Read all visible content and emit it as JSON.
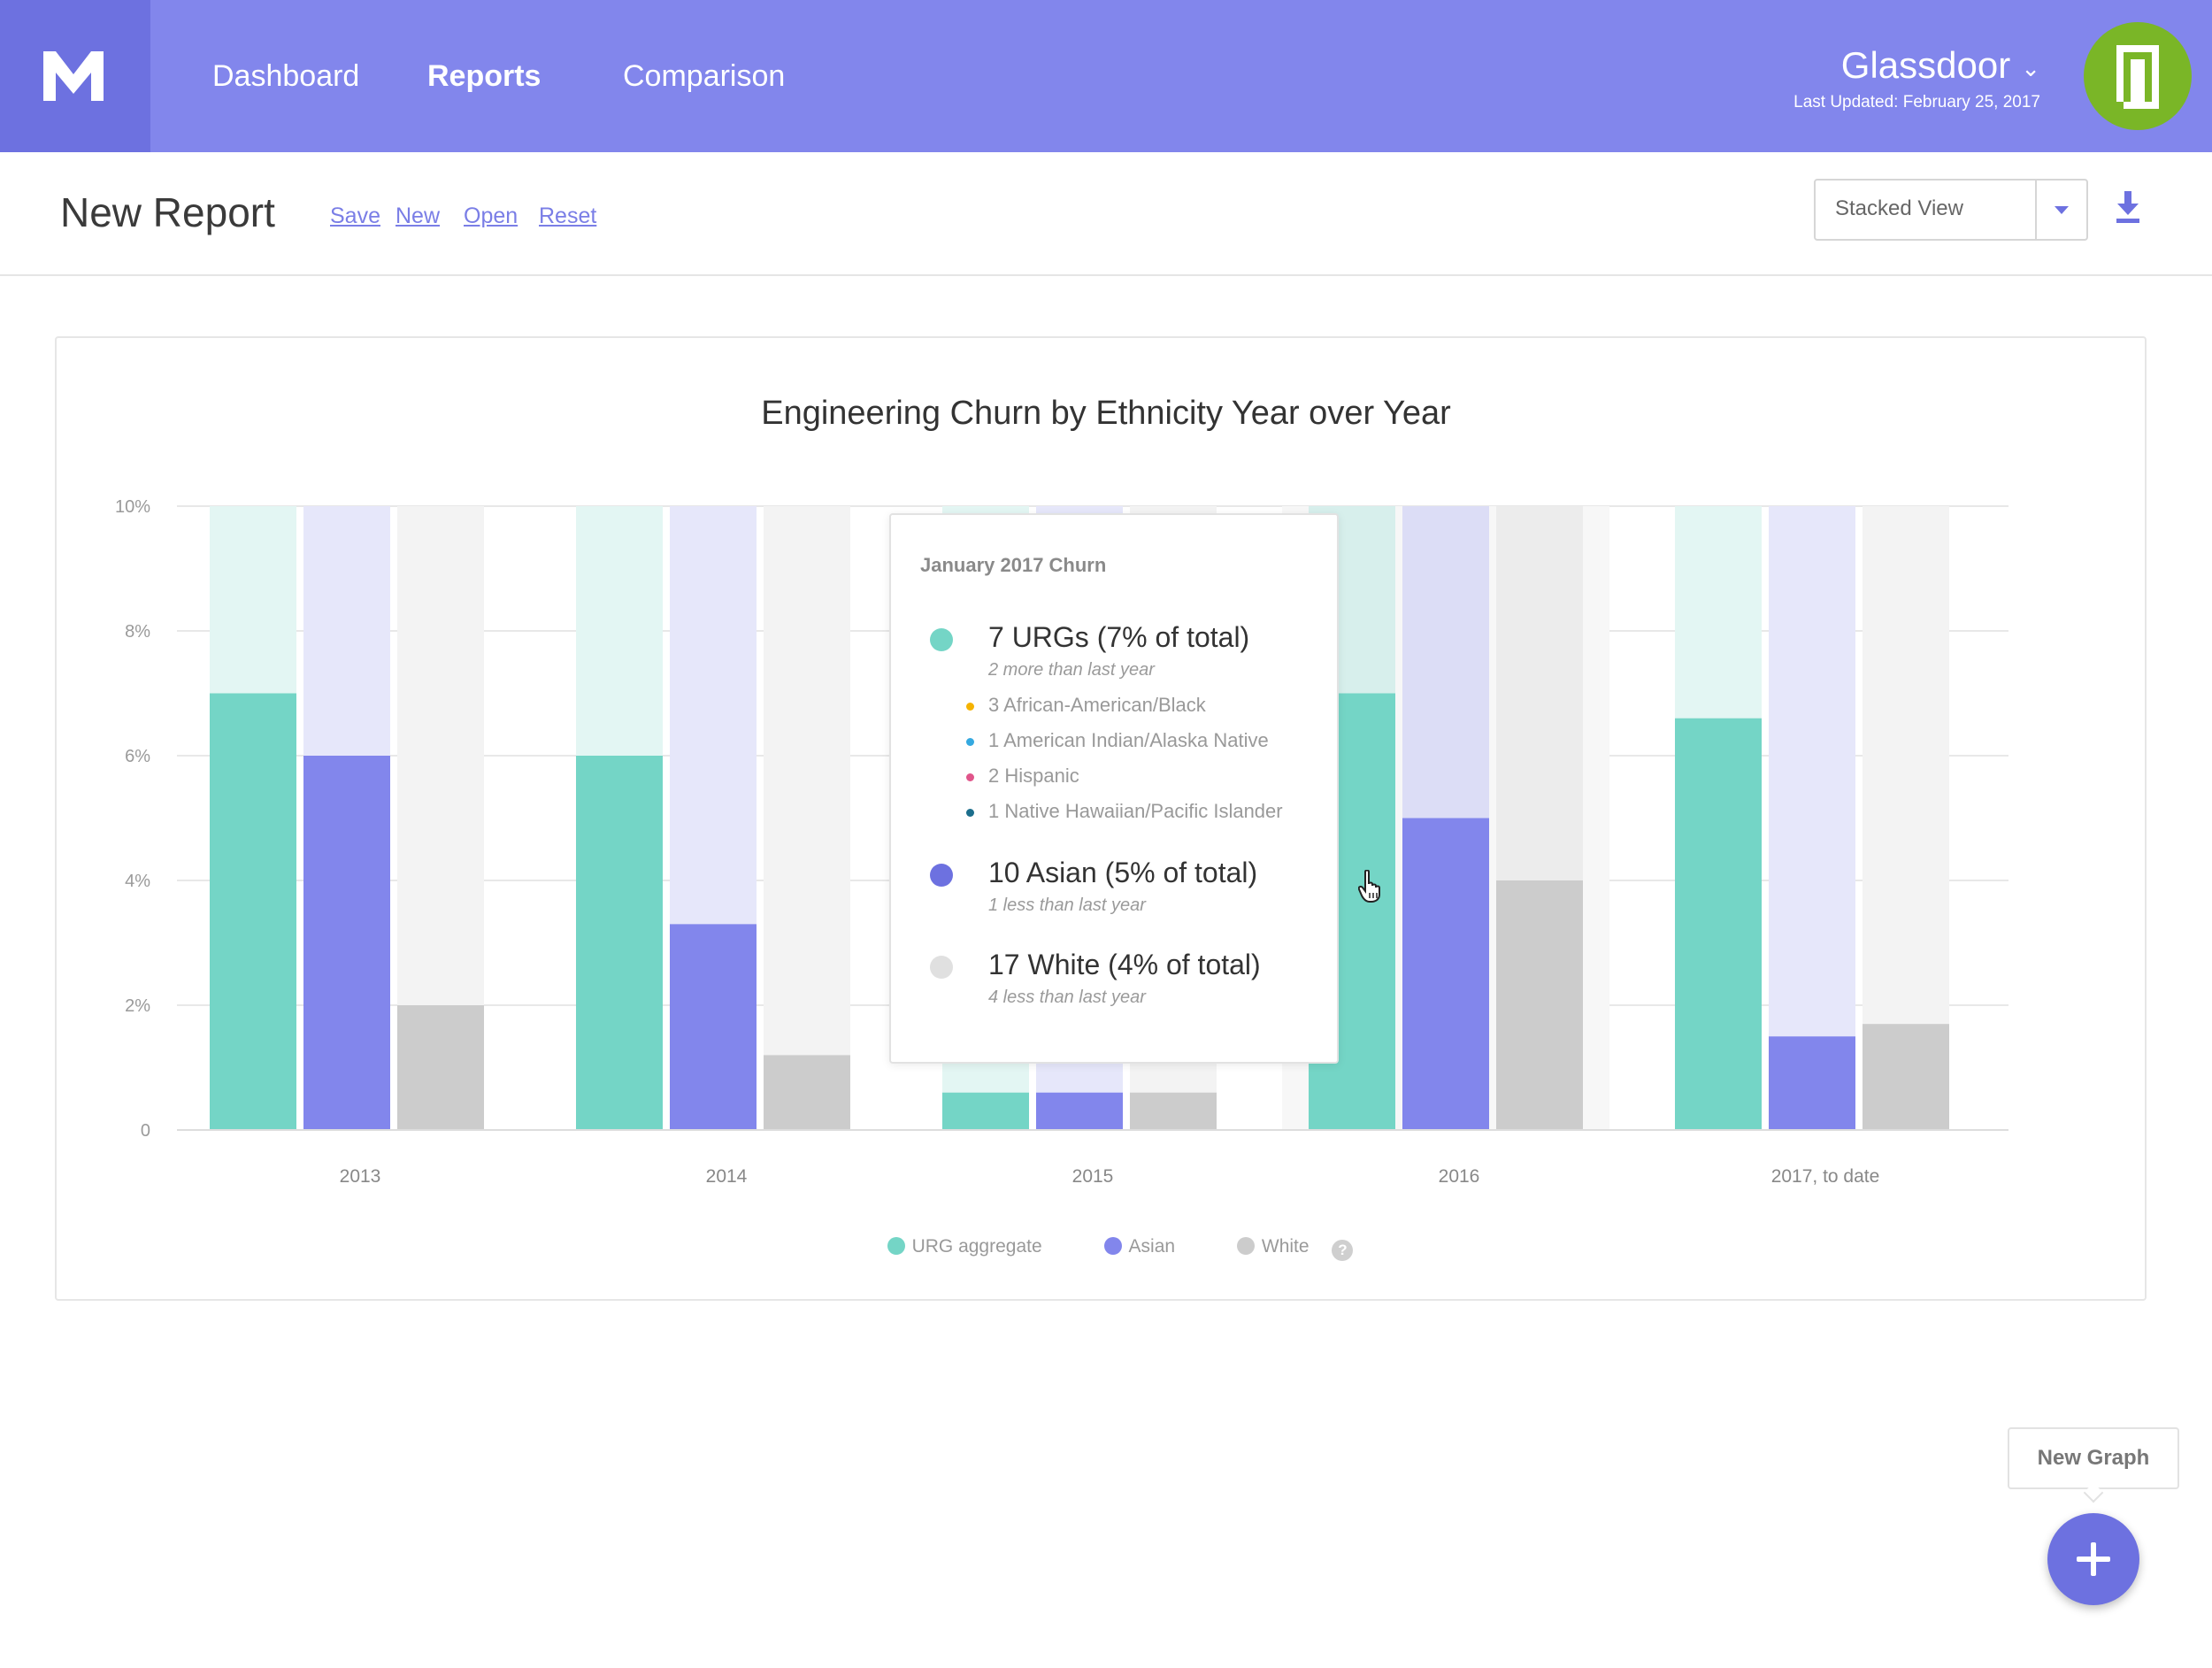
{
  "nav": {
    "logo_text": "M",
    "links": [
      "Dashboard",
      "Reports",
      "Comparison"
    ],
    "active": "Reports",
    "company": {
      "name": "Glassdoor",
      "updated": "Last Updated: February 25, 2017",
      "logo_color": "#7ab627"
    }
  },
  "report": {
    "title": "New Report",
    "actions": [
      "Save",
      "New",
      "Open",
      "Reset"
    ],
    "view_select": "Stacked View",
    "download_icon": "download-icon"
  },
  "chart_data": {
    "type": "bar",
    "title": "Engineering Churn by Ethnicity Year over Year",
    "categories": [
      "2013",
      "2014",
      "2015",
      "2016",
      "2017, to date"
    ],
    "series": [
      {
        "name": "URG aggregate",
        "color": "#74d5c6",
        "values": [
          7.0,
          6.0,
          0.6,
          7.0,
          6.6
        ]
      },
      {
        "name": "Asian",
        "color": "#8286ec",
        "values": [
          6.0,
          3.3,
          0.6,
          5.0,
          1.5
        ]
      },
      {
        "name": "White",
        "color": "#cccccc",
        "values": [
          2.0,
          1.2,
          0.6,
          4.0,
          1.7
        ]
      }
    ],
    "ylim": [
      0,
      10
    ],
    "yticks": [
      "0",
      "2%",
      "4%",
      "6%",
      "8%",
      "10%"
    ],
    "legend": "bottom",
    "grid": true
  },
  "tooltip": {
    "title": "January 2017 Churn",
    "groups": [
      {
        "label": "7 URGs (7% of total)",
        "sub": "2 more than last year",
        "color": "#74d5c6",
        "breakdown": [
          {
            "label": "3 African-American/Black",
            "color": "#f5b300"
          },
          {
            "label": "1 American Indian/Alaska Native",
            "color": "#35a9e0"
          },
          {
            "label": "2 Hispanic",
            "color": "#e0558a"
          },
          {
            "label": "1 Native Hawaiian/Pacific Islander",
            "color": "#1c6e8c"
          }
        ]
      },
      {
        "label": "10 Asian (5% of total)",
        "sub": "1 less than last year",
        "color": "#6d71e0",
        "breakdown": []
      },
      {
        "label": "17 White (4% of total)",
        "sub": "4 less than last year",
        "color": "#e0e0e0",
        "breakdown": []
      }
    ]
  },
  "fab": {
    "tooltip": "New Graph",
    "icon": "plus-icon"
  }
}
